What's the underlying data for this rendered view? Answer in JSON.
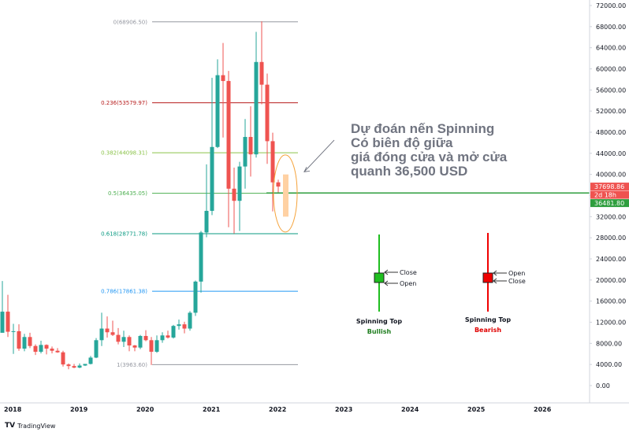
{
  "chart_data": {
    "type": "candlestick",
    "x_labels": [
      "2018",
      "2019",
      "2020",
      "2021",
      "2022",
      "2023",
      "2024",
      "2025",
      "2026"
    ],
    "y_ticks": [
      72000,
      68000,
      64000,
      60000,
      56000,
      52000,
      48000,
      44000,
      40000,
      36000,
      32000,
      28000,
      24000,
      20000,
      16000,
      12000,
      8000,
      4000,
      0
    ],
    "y_tick_labels": [
      "72000.00",
      "68000.00",
      "64000.00",
      "60000.00",
      "56000.00",
      "52000.00",
      "48000.00",
      "44000.00",
      "40000.00",
      "36000.00",
      "32000.00",
      "28000.00",
      "24000.00",
      "20000.00",
      "16000.00",
      "12000.00",
      "8000.00",
      "4000.00",
      "0.00"
    ],
    "ylim": [
      -2000,
      74000
    ],
    "candles": [
      {
        "date": "2017-12",
        "o": 10000,
        "h": 19800,
        "l": 10500,
        "c": 14000
      },
      {
        "date": "2018-01",
        "o": 14000,
        "h": 17200,
        "l": 9200,
        "c": 10200
      },
      {
        "date": "2018-02",
        "o": 10200,
        "h": 11700,
        "l": 6000,
        "c": 10300
      },
      {
        "date": "2018-03",
        "o": 10300,
        "h": 11600,
        "l": 6600,
        "c": 7000
      },
      {
        "date": "2018-04",
        "o": 7000,
        "h": 9800,
        "l": 6500,
        "c": 9200
      },
      {
        "date": "2018-05",
        "o": 9200,
        "h": 10000,
        "l": 7100,
        "c": 7500
      },
      {
        "date": "2018-06",
        "o": 7500,
        "h": 7800,
        "l": 5800,
        "c": 6400
      },
      {
        "date": "2018-07",
        "o": 6400,
        "h": 8500,
        "l": 6100,
        "c": 7700
      },
      {
        "date": "2018-08",
        "o": 7700,
        "h": 7800,
        "l": 5900,
        "c": 7000
      },
      {
        "date": "2018-09",
        "o": 7000,
        "h": 7400,
        "l": 6100,
        "c": 6600
      },
      {
        "date": "2018-10",
        "o": 6600,
        "h": 7100,
        "l": 6200,
        "c": 6300
      },
      {
        "date": "2018-11",
        "o": 6300,
        "h": 6600,
        "l": 3600,
        "c": 4000
      },
      {
        "date": "2018-12",
        "o": 4000,
        "h": 4200,
        "l": 3100,
        "c": 3700
      },
      {
        "date": "2019-01",
        "o": 3700,
        "h": 4100,
        "l": 3300,
        "c": 3400
      },
      {
        "date": "2019-02",
        "o": 3400,
        "h": 4200,
        "l": 3300,
        "c": 3800
      },
      {
        "date": "2019-03",
        "o": 3800,
        "h": 4100,
        "l": 3700,
        "c": 4100
      },
      {
        "date": "2019-04",
        "o": 4100,
        "h": 5600,
        "l": 4000,
        "c": 5300
      },
      {
        "date": "2019-05",
        "o": 5300,
        "h": 9000,
        "l": 5200,
        "c": 8600
      },
      {
        "date": "2019-06",
        "o": 8600,
        "h": 13800,
        "l": 7500,
        "c": 10800
      },
      {
        "date": "2019-07",
        "o": 10800,
        "h": 13100,
        "l": 9100,
        "c": 10100
      },
      {
        "date": "2019-08",
        "o": 10100,
        "h": 12300,
        "l": 9400,
        "c": 9600
      },
      {
        "date": "2019-09",
        "o": 9600,
        "h": 10900,
        "l": 7800,
        "c": 8300
      },
      {
        "date": "2019-10",
        "o": 8300,
        "h": 10400,
        "l": 7300,
        "c": 9200
      },
      {
        "date": "2019-11",
        "o": 9200,
        "h": 9500,
        "l": 6500,
        "c": 7600
      },
      {
        "date": "2019-12",
        "o": 7600,
        "h": 7700,
        "l": 6500,
        "c": 7200
      },
      {
        "date": "2020-01",
        "o": 7200,
        "h": 9600,
        "l": 6900,
        "c": 9400
      },
      {
        "date": "2020-02",
        "o": 9400,
        "h": 10500,
        "l": 8400,
        "c": 8600
      },
      {
        "date": "2020-03",
        "o": 8600,
        "h": 9200,
        "l": 3900,
        "c": 6400
      },
      {
        "date": "2020-04",
        "o": 6400,
        "h": 9500,
        "l": 6200,
        "c": 8600
      },
      {
        "date": "2020-05",
        "o": 8600,
        "h": 10100,
        "l": 8100,
        "c": 9500
      },
      {
        "date": "2020-06",
        "o": 9500,
        "h": 10400,
        "l": 8900,
        "c": 9100
      },
      {
        "date": "2020-07",
        "o": 9100,
        "h": 11500,
        "l": 8900,
        "c": 11300
      },
      {
        "date": "2020-08",
        "o": 11300,
        "h": 12500,
        "l": 10600,
        "c": 11600
      },
      {
        "date": "2020-09",
        "o": 11600,
        "h": 12100,
        "l": 9900,
        "c": 10800
      },
      {
        "date": "2020-10",
        "o": 10800,
        "h": 14100,
        "l": 10400,
        "c": 13800
      },
      {
        "date": "2020-11",
        "o": 13800,
        "h": 19900,
        "l": 13200,
        "c": 19700
      },
      {
        "date": "2020-12",
        "o": 19700,
        "h": 29300,
        "l": 17600,
        "c": 29000
      },
      {
        "date": "2021-01",
        "o": 29000,
        "h": 41900,
        "l": 28100,
        "c": 33100
      },
      {
        "date": "2021-02",
        "o": 33100,
        "h": 58300,
        "l": 32300,
        "c": 45200
      },
      {
        "date": "2021-03",
        "o": 45200,
        "h": 61800,
        "l": 45000,
        "c": 58800
      },
      {
        "date": "2021-04",
        "o": 58800,
        "h": 64900,
        "l": 47000,
        "c": 57700
      },
      {
        "date": "2021-05",
        "o": 57700,
        "h": 59600,
        "l": 30000,
        "c": 37300
      },
      {
        "date": "2021-06",
        "o": 37300,
        "h": 41300,
        "l": 28800,
        "c": 35000
      },
      {
        "date": "2021-07",
        "o": 35000,
        "h": 42400,
        "l": 29300,
        "c": 41500
      },
      {
        "date": "2021-08",
        "o": 41500,
        "h": 50500,
        "l": 37300,
        "c": 47100
      },
      {
        "date": "2021-09",
        "o": 47100,
        "h": 52900,
        "l": 39600,
        "c": 43800
      },
      {
        "date": "2021-10",
        "o": 43800,
        "h": 67000,
        "l": 43200,
        "c": 61300
      },
      {
        "date": "2021-11",
        "o": 61300,
        "h": 69000,
        "l": 53300,
        "c": 57000
      },
      {
        "date": "2021-12",
        "o": 57000,
        "h": 59100,
        "l": 42000,
        "c": 46300
      },
      {
        "date": "2022-01",
        "o": 46300,
        "h": 47900,
        "l": 33000,
        "c": 38500
      },
      {
        "date": "2022-02",
        "o": 38500,
        "h": 39000,
        "l": 36500,
        "c": 37700
      }
    ],
    "fib_levels": [
      {
        "label": "0(68906.50)",
        "value": 68906.5,
        "color": "#9598a1"
      },
      {
        "label": "0.236(53579.97)",
        "value": 53579.97,
        "color": "#b71c1c"
      },
      {
        "label": "0.382(44098.31)",
        "value": 44098.31,
        "color": "#8bc34a"
      },
      {
        "label": "0.5(36435.05)",
        "value": 36435.05,
        "color": "#4caf50"
      },
      {
        "label": "0.618(28771.78)",
        "value": 28771.78,
        "color": "#089981"
      },
      {
        "label": "0.786(17861.38)",
        "value": 17861.38,
        "color": "#2196f3"
      },
      {
        "label": "1(3963.60)",
        "value": 3963.6,
        "color": "#9598a1"
      }
    ],
    "price_tags": [
      {
        "label": "37698.86",
        "value": 37698.86,
        "color": "#ef5350"
      },
      {
        "label": "2d 18h",
        "value": 36900,
        "color": "#ef5350"
      },
      {
        "label": "36481.80",
        "value": 36481.8,
        "color": "#2e9e3e"
      }
    ],
    "current_line": 36481.8,
    "colors": {
      "up": "#26a69a",
      "down": "#ef5350",
      "line": "#2e9e3e",
      "ellipse": "#f5a33b",
      "highlight": "#ffd1a3"
    }
  },
  "annotation": {
    "lines": [
      "Dự đoán nến Spinning",
      "Có biên độ giữa",
      "giá đóng cửa và mở cửa",
      "quanh 36,500 USD"
    ]
  },
  "legend": {
    "bullish": {
      "title": "Spinning Top",
      "subtitle": "Bullish",
      "upper": "Close",
      "lower": "Open",
      "color": "#1fbe1f",
      "title_color": "#131722",
      "sub_color": "#1e7d1e"
    },
    "bearish": {
      "title": "Spinning Top",
      "subtitle": "Bearish",
      "upper": "Open",
      "lower": "Close",
      "color": "#f00000",
      "title_color": "#131722",
      "sub_color": "#e00000"
    }
  },
  "brand": {
    "text": "TradingView",
    "logo": "TV"
  }
}
